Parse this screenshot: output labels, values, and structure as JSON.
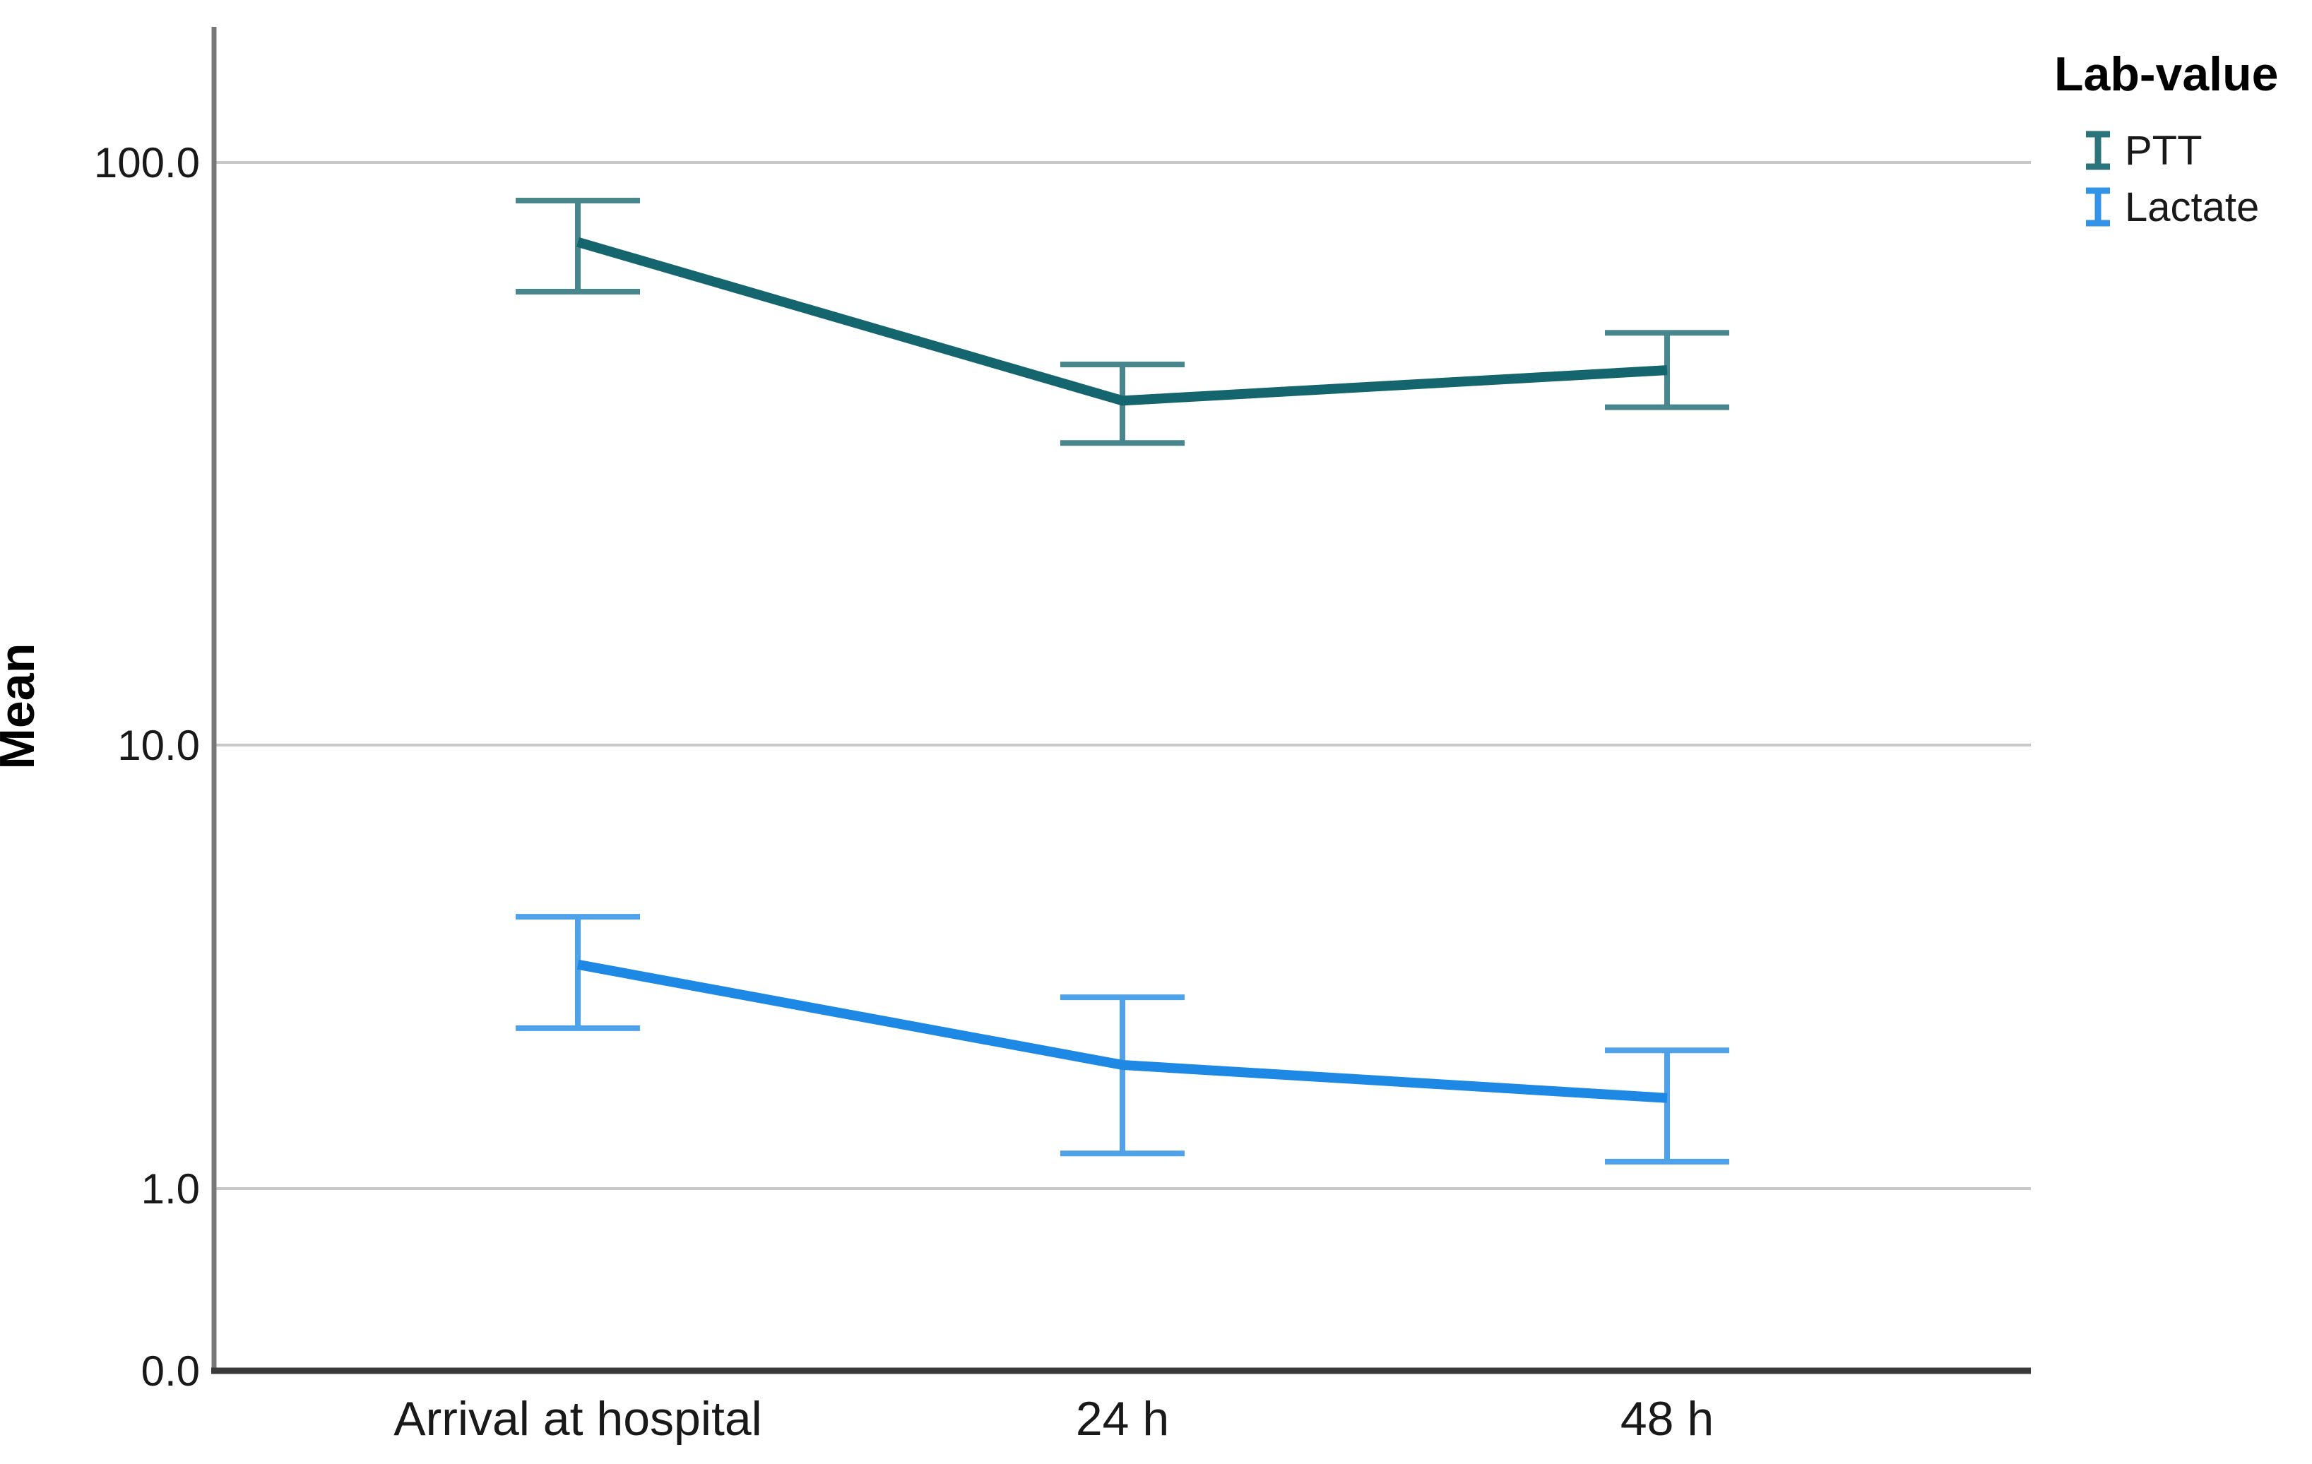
{
  "chart_data": {
    "type": "line",
    "subtype": "mean-with-error-bars",
    "title": "",
    "xlabel": "",
    "ylabel": "Mean",
    "y_scale": "log",
    "grid": "horizontal",
    "categories": [
      "Arrival at hospital",
      "24 h",
      "48 h"
    ],
    "y_ticks": [
      {
        "label": "0.0",
        "value": 0
      },
      {
        "label": "1.0",
        "value": 1
      },
      {
        "label": "10.0",
        "value": 10
      },
      {
        "label": "100.0",
        "value": 100
      }
    ],
    "series": [
      {
        "name": "Lactate",
        "color": "#1E88E5",
        "values": [
          3.2,
          1.9,
          1.6
        ],
        "error_low": [
          2.3,
          1.2,
          1.15
        ],
        "error_high": [
          4.1,
          2.7,
          2.05
        ]
      },
      {
        "name": "PTT",
        "color": "#15656E",
        "values": [
          73,
          39,
          44
        ],
        "error_low": [
          60,
          33,
          38
        ],
        "error_high": [
          86,
          45,
          51
        ]
      }
    ],
    "legend": {
      "title": "Lab-value",
      "position": "top-right"
    }
  }
}
